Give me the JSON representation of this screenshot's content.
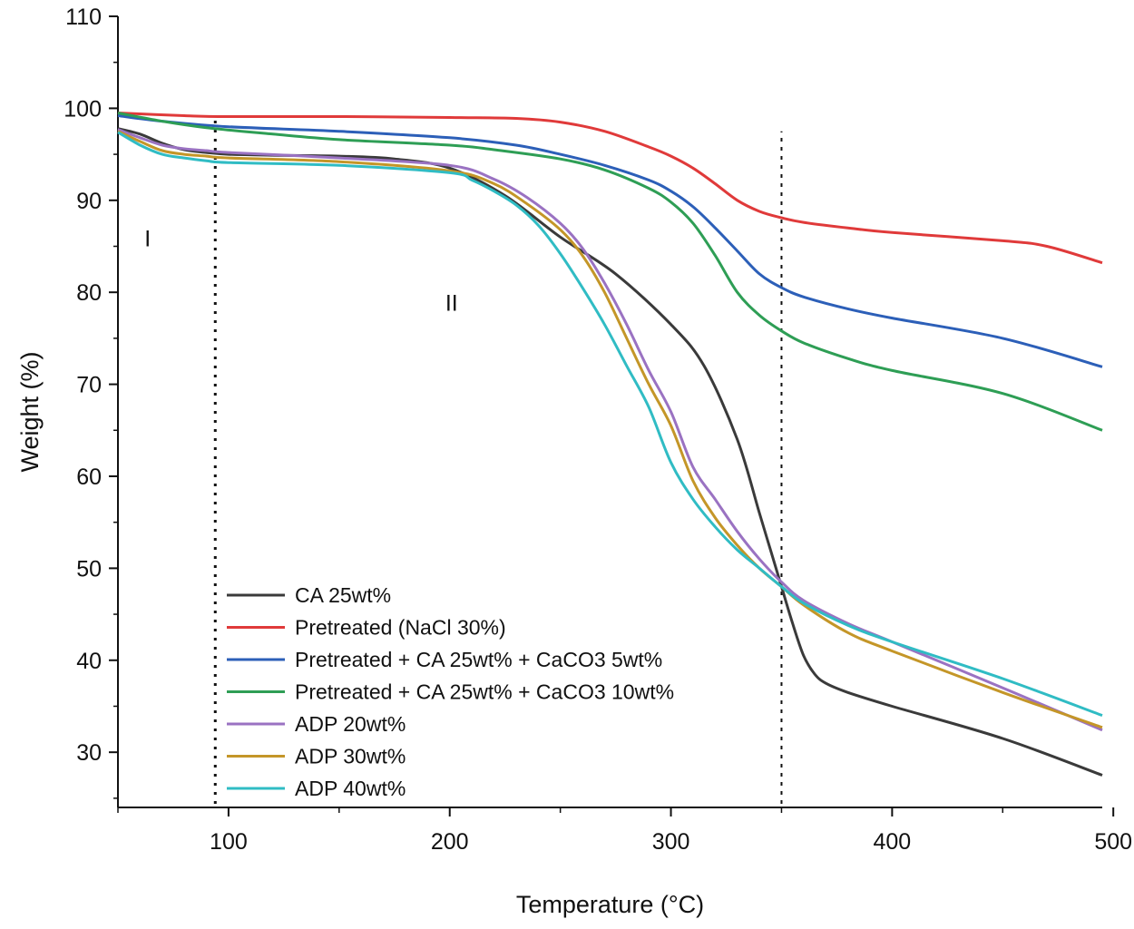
{
  "chart_data": {
    "type": "line",
    "title": "",
    "xlabel": "Temperature (°C)",
    "ylabel": "Weight (%)",
    "xlim": [
      50,
      495
    ],
    "ylim": [
      24,
      110
    ],
    "xticks": [
      100,
      200,
      300,
      400,
      500
    ],
    "yticks": [
      30,
      40,
      50,
      60,
      70,
      80,
      90,
      100,
      110
    ],
    "grid": false,
    "legend_position": "bottom-left",
    "regions": [
      {
        "label": "I",
        "x": 62,
        "y": 85
      },
      {
        "label": "II",
        "x": 198,
        "y": 78
      }
    ],
    "vlines": [
      94,
      350
    ],
    "series": [
      {
        "name": "CA 25wt%",
        "color": "#3a3a3a",
        "x": [
          50,
          60,
          70,
          80,
          90,
          100,
          120,
          150,
          175,
          200,
          225,
          250,
          275,
          300,
          315,
          330,
          340,
          345,
          350,
          355,
          360,
          365,
          370,
          380,
          400,
          450,
          495
        ],
        "y": [
          97.8,
          97.2,
          96.2,
          95.5,
          95.2,
          95,
          94.9,
          94.8,
          94.5,
          93.5,
          90.5,
          86,
          82,
          76.5,
          72,
          64,
          56,
          52,
          48,
          44,
          40.5,
          38.5,
          37.5,
          36.5,
          35,
          31.5,
          27.5
        ]
      },
      {
        "name": "Pretreated (NaCl 30%)",
        "color": "#e03a3a",
        "x": [
          50,
          80,
          100,
          150,
          200,
          230,
          250,
          270,
          290,
          300,
          310,
          320,
          330,
          340,
          350,
          360,
          380,
          400,
          450,
          470,
          495
        ],
        "y": [
          99.5,
          99.2,
          99.1,
          99.1,
          99.0,
          98.9,
          98.5,
          97.5,
          95.8,
          94.8,
          93.5,
          91.8,
          90,
          88.8,
          88.1,
          87.6,
          87,
          86.5,
          85.6,
          85,
          83.2
        ]
      },
      {
        "name": "Pretreated + CA 25wt% + CaCO3 5wt%",
        "color": "#2c5fb8",
        "x": [
          50,
          70,
          100,
          150,
          200,
          230,
          250,
          270,
          290,
          300,
          310,
          320,
          330,
          340,
          350,
          360,
          380,
          400,
          450,
          495
        ],
        "y": [
          99.2,
          98.6,
          98,
          97.5,
          96.8,
          96,
          95,
          93.8,
          92.2,
          91,
          89.3,
          87,
          84.5,
          82,
          80.5,
          79.5,
          78.2,
          77.2,
          75,
          71.9
        ]
      },
      {
        "name": "Pretreated + CA 25wt% + CaCO3 10wt%",
        "color": "#2e9e55",
        "x": [
          50,
          70,
          90,
          120,
          150,
          200,
          220,
          250,
          270,
          290,
          300,
          310,
          320,
          330,
          340,
          350,
          360,
          380,
          400,
          450,
          495
        ],
        "y": [
          99.5,
          98.6,
          97.9,
          97.2,
          96.6,
          96,
          95.5,
          94.5,
          93.3,
          91.3,
          89.8,
          87.5,
          84,
          80,
          77.5,
          75.8,
          74.5,
          72.8,
          71.5,
          69,
          65
        ]
      },
      {
        "name": "ADP 20wt%",
        "color": "#9a72c2",
        "x": [
          50,
          60,
          70,
          80,
          90,
          100,
          150,
          200,
          220,
          235,
          250,
          260,
          270,
          280,
          290,
          300,
          310,
          320,
          330,
          340,
          350,
          360,
          380,
          400,
          450,
          495
        ],
        "y": [
          97.7,
          96.8,
          96,
          95.6,
          95.4,
          95.2,
          94.6,
          93.8,
          92.3,
          90.3,
          87.5,
          84.8,
          81,
          76.5,
          71.5,
          67,
          61,
          57.5,
          54,
          51,
          48.5,
          46.5,
          44,
          42,
          37,
          32.4
        ]
      },
      {
        "name": "ADP 30wt%",
        "color": "#c49628",
        "x": [
          50,
          60,
          70,
          80,
          90,
          100,
          150,
          200,
          220,
          235,
          250,
          260,
          270,
          280,
          290,
          300,
          310,
          320,
          330,
          340,
          350,
          360,
          380,
          400,
          450,
          495
        ],
        "y": [
          97.5,
          96.4,
          95.4,
          95,
          94.8,
          94.6,
          94.2,
          93.2,
          91.8,
          89.6,
          86.8,
          84,
          80,
          75,
          70,
          65.5,
          59.5,
          55.5,
          52.5,
          50,
          48,
          46,
          43,
          41,
          36.5,
          32.7
        ]
      },
      {
        "name": "ADP 40wt%",
        "color": "#30bcc4",
        "x": [
          50,
          60,
          70,
          80,
          90,
          100,
          150,
          200,
          210,
          220,
          230,
          240,
          250,
          260,
          270,
          280,
          290,
          300,
          310,
          320,
          330,
          340,
          350,
          360,
          380,
          400,
          450,
          495
        ],
        "y": [
          97.4,
          96,
          95,
          94.6,
          94.3,
          94.1,
          93.8,
          93,
          92.2,
          91,
          89.5,
          87.3,
          84.2,
          80.5,
          76.5,
          72,
          67.5,
          61.5,
          57.5,
          54.5,
          52,
          50,
          48,
          46.2,
          43.8,
          42,
          38,
          34
        ]
      }
    ]
  }
}
